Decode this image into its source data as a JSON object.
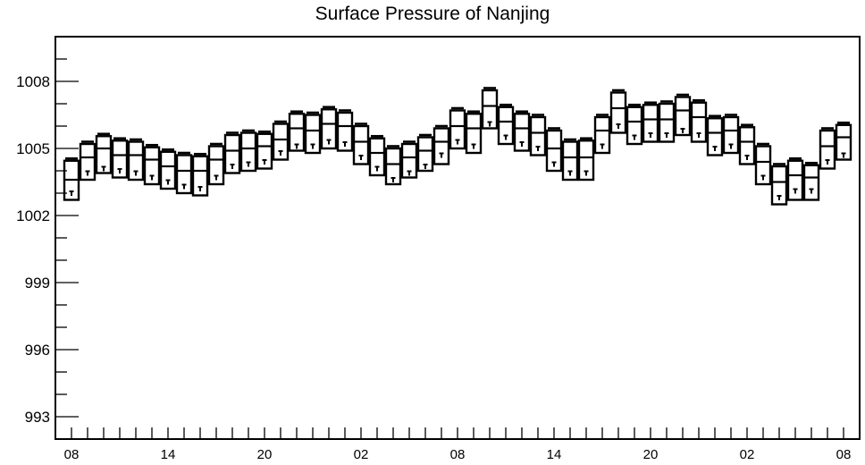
{
  "chart_data": {
    "type": "boxplot",
    "title": "Surface Pressure of Nanjing",
    "xlabel": "",
    "ylabel": "",
    "ylim": [
      992,
      1010
    ],
    "y_ticks": [
      993,
      996,
      999,
      1002,
      1005,
      1008
    ],
    "x_tick_labels": [
      "08",
      "14",
      "20",
      "02",
      "08",
      "14",
      "20",
      "02",
      "08"
    ],
    "x_tick_hours": [
      0,
      6,
      12,
      18,
      24,
      30,
      36,
      42,
      48
    ],
    "grid": false,
    "legend": "none",
    "boxes": [
      {
        "hour": 0,
        "max": 1004.55,
        "q3": 1004.45,
        "median": 1003.6,
        "q1": 1002.7,
        "min": 1002.6,
        "mean": 1003.0
      },
      {
        "hour": 1,
        "max": 1005.3,
        "q3": 1005.2,
        "median": 1004.6,
        "q1": 1003.6,
        "min": 1003.5,
        "mean": 1003.9
      },
      {
        "hour": 2,
        "max": 1005.65,
        "q3": 1005.55,
        "median": 1005.0,
        "q1": 1003.9,
        "min": 1003.8,
        "mean": 1004.1
      },
      {
        "hour": 3,
        "max": 1005.45,
        "q3": 1005.35,
        "median": 1004.7,
        "q1": 1003.7,
        "min": 1003.6,
        "mean": 1004.0
      },
      {
        "hour": 4,
        "max": 1005.4,
        "q3": 1005.3,
        "median": 1004.7,
        "q1": 1003.6,
        "min": 1003.5,
        "mean": 1003.9
      },
      {
        "hour": 5,
        "max": 1005.15,
        "q3": 1005.05,
        "median": 1004.5,
        "q1": 1003.4,
        "min": 1003.3,
        "mean": 1003.7
      },
      {
        "hour": 6,
        "max": 1004.95,
        "q3": 1004.85,
        "median": 1004.2,
        "q1": 1003.2,
        "min": 1003.1,
        "mean": 1003.5
      },
      {
        "hour": 7,
        "max": 1004.8,
        "q3": 1004.7,
        "median": 1004.0,
        "q1": 1003.0,
        "min": 1002.9,
        "mean": 1003.3
      },
      {
        "hour": 8,
        "max": 1004.75,
        "q3": 1004.65,
        "median": 1004.0,
        "q1": 1002.9,
        "min": 1002.8,
        "mean": 1003.2
      },
      {
        "hour": 9,
        "max": 1005.2,
        "q3": 1005.1,
        "median": 1004.5,
        "q1": 1003.4,
        "min": 1003.3,
        "mean": 1003.7
      },
      {
        "hour": 10,
        "max": 1005.7,
        "q3": 1005.6,
        "median": 1004.9,
        "q1": 1003.9,
        "min": 1003.8,
        "mean": 1004.2
      },
      {
        "hour": 11,
        "max": 1005.8,
        "q3": 1005.7,
        "median": 1005.0,
        "q1": 1004.0,
        "min": 1003.9,
        "mean": 1004.3
      },
      {
        "hour": 12,
        "max": 1005.75,
        "q3": 1005.65,
        "median": 1005.1,
        "q1": 1004.1,
        "min": 1004.0,
        "mean": 1004.4
      },
      {
        "hour": 13,
        "max": 1006.2,
        "q3": 1006.1,
        "median": 1005.4,
        "q1": 1004.5,
        "min": 1004.4,
        "mean": 1004.8
      },
      {
        "hour": 14,
        "max": 1006.65,
        "q3": 1006.55,
        "median": 1005.9,
        "q1": 1004.9,
        "min": 1004.8,
        "mean": 1005.1
      },
      {
        "hour": 15,
        "max": 1006.6,
        "q3": 1006.5,
        "median": 1005.8,
        "q1": 1004.8,
        "min": 1004.7,
        "mean": 1005.1
      },
      {
        "hour": 16,
        "max": 1006.85,
        "q3": 1006.75,
        "median": 1006.1,
        "q1": 1005.0,
        "min": 1004.9,
        "mean": 1005.3
      },
      {
        "hour": 17,
        "max": 1006.7,
        "q3": 1006.6,
        "median": 1006.0,
        "q1": 1004.9,
        "min": 1004.8,
        "mean": 1005.2
      },
      {
        "hour": 18,
        "max": 1006.1,
        "q3": 1006.0,
        "median": 1005.3,
        "q1": 1004.3,
        "min": 1004.2,
        "mean": 1004.6
      },
      {
        "hour": 19,
        "max": 1005.55,
        "q3": 1005.45,
        "median": 1004.8,
        "q1": 1003.8,
        "min": 1003.7,
        "mean": 1004.1
      },
      {
        "hour": 20,
        "max": 1005.1,
        "q3": 1005.0,
        "median": 1004.3,
        "q1": 1003.4,
        "min": 1003.3,
        "mean": 1003.6
      },
      {
        "hour": 21,
        "max": 1005.3,
        "q3": 1005.2,
        "median": 1004.6,
        "q1": 1003.7,
        "min": 1003.6,
        "mean": 1003.9
      },
      {
        "hour": 22,
        "max": 1005.6,
        "q3": 1005.5,
        "median": 1004.9,
        "q1": 1004.0,
        "min": 1003.9,
        "mean": 1004.2
      },
      {
        "hour": 23,
        "max": 1006.0,
        "q3": 1005.9,
        "median": 1005.3,
        "q1": 1004.3,
        "min": 1004.2,
        "mean": 1004.7
      },
      {
        "hour": 24,
        "max": 1006.8,
        "q3": 1006.7,
        "median": 1006.0,
        "q1": 1005.0,
        "min": 1004.9,
        "mean": 1005.3
      },
      {
        "hour": 25,
        "max": 1006.65,
        "q3": 1006.55,
        "median": 1005.9,
        "q1": 1004.8,
        "min": 1004.7,
        "mean": 1005.1
      },
      {
        "hour": 26,
        "max": 1007.7,
        "q3": 1007.6,
        "median": 1006.9,
        "q1": 1005.9,
        "min": 1005.8,
        "mean": 1006.1
      },
      {
        "hour": 27,
        "max": 1006.95,
        "q3": 1006.85,
        "median": 1006.2,
        "q1": 1005.2,
        "min": 1005.1,
        "mean": 1005.5
      },
      {
        "hour": 28,
        "max": 1006.65,
        "q3": 1006.55,
        "median": 1005.9,
        "q1": 1004.9,
        "min": 1004.8,
        "mean": 1005.2
      },
      {
        "hour": 29,
        "max": 1006.5,
        "q3": 1006.4,
        "median": 1005.7,
        "q1": 1004.7,
        "min": 1004.6,
        "mean": 1005.0
      },
      {
        "hour": 30,
        "max": 1005.9,
        "q3": 1005.8,
        "median": 1005.0,
        "q1": 1004.0,
        "min": 1003.9,
        "mean": 1004.3
      },
      {
        "hour": 31,
        "max": 1005.4,
        "q3": 1005.3,
        "median": 1004.6,
        "q1": 1003.6,
        "min": 1003.5,
        "mean": 1003.9
      },
      {
        "hour": 32,
        "max": 1005.45,
        "q3": 1005.35,
        "median": 1004.6,
        "q1": 1003.6,
        "min": 1003.5,
        "mean": 1003.9
      },
      {
        "hour": 33,
        "max": 1006.5,
        "q3": 1006.4,
        "median": 1005.8,
        "q1": 1004.8,
        "min": 1004.7,
        "mean": 1005.1
      },
      {
        "hour": 34,
        "max": 1007.6,
        "q3": 1007.5,
        "median": 1006.8,
        "q1": 1005.7,
        "min": 1005.6,
        "mean": 1006.0
      },
      {
        "hour": 35,
        "max": 1006.95,
        "q3": 1006.85,
        "median": 1006.2,
        "q1": 1005.2,
        "min": 1005.1,
        "mean": 1005.5
      },
      {
        "hour": 36,
        "max": 1007.05,
        "q3": 1006.95,
        "median": 1006.3,
        "q1": 1005.3,
        "min": 1005.2,
        "mean": 1005.6
      },
      {
        "hour": 37,
        "max": 1007.1,
        "q3": 1007.0,
        "median": 1006.3,
        "q1": 1005.3,
        "min": 1005.2,
        "mean": 1005.6
      },
      {
        "hour": 38,
        "max": 1007.4,
        "q3": 1007.3,
        "median": 1006.7,
        "q1": 1005.6,
        "min": 1005.5,
        "mean": 1005.8
      },
      {
        "hour": 39,
        "max": 1007.15,
        "q3": 1007.05,
        "median": 1006.4,
        "q1": 1005.3,
        "min": 1005.2,
        "mean": 1005.6
      },
      {
        "hour": 40,
        "max": 1006.45,
        "q3": 1006.35,
        "median": 1005.7,
        "q1": 1004.7,
        "min": 1004.6,
        "mean": 1005.0
      },
      {
        "hour": 41,
        "max": 1006.5,
        "q3": 1006.4,
        "median": 1005.8,
        "q1": 1004.8,
        "min": 1004.7,
        "mean": 1005.1
      },
      {
        "hour": 42,
        "max": 1006.05,
        "q3": 1005.95,
        "median": 1005.3,
        "q1": 1004.3,
        "min": 1004.2,
        "mean": 1004.6
      },
      {
        "hour": 43,
        "max": 1005.2,
        "q3": 1005.1,
        "median": 1004.4,
        "q1": 1003.4,
        "min": 1003.3,
        "mean": 1003.7
      },
      {
        "hour": 44,
        "max": 1004.3,
        "q3": 1004.2,
        "median": 1003.5,
        "q1": 1002.5,
        "min": 1002.4,
        "mean": 1002.8
      },
      {
        "hour": 45,
        "max": 1004.55,
        "q3": 1004.45,
        "median": 1003.8,
        "q1": 1002.7,
        "min": 1002.6,
        "mean": 1003.1
      },
      {
        "hour": 46,
        "max": 1004.35,
        "q3": 1004.25,
        "median": 1003.7,
        "q1": 1002.7,
        "min": 1002.6,
        "mean": 1003.1
      },
      {
        "hour": 47,
        "max": 1005.9,
        "q3": 1005.8,
        "median": 1005.1,
        "q1": 1004.1,
        "min": 1004.0,
        "mean": 1004.4
      },
      {
        "hour": 48,
        "max": 1006.15,
        "q3": 1006.05,
        "median": 1005.5,
        "q1": 1004.5,
        "min": 1004.4,
        "mean": 1004.7
      }
    ]
  }
}
